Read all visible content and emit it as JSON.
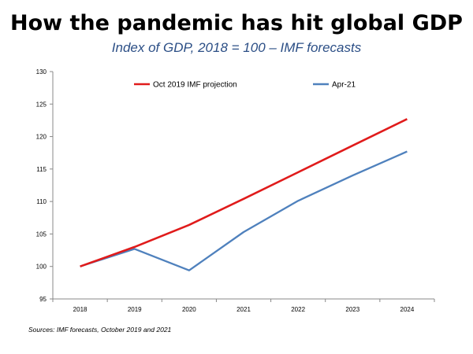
{
  "chart_data": {
    "type": "line",
    "title": "How the pandemic has hit global GDP",
    "subtitle": "Index of GDP, 2018 = 100 – IMF forecasts",
    "categories": [
      "2018",
      "2019",
      "2020",
      "2021",
      "2022",
      "2023",
      "2024"
    ],
    "ylim": [
      95,
      130
    ],
    "yticks": [
      "95",
      "100",
      "105",
      "110",
      "115",
      "120",
      "125",
      "130"
    ],
    "grid": false,
    "legend_position": "top",
    "series": [
      {
        "name": "Oct 2019 IMF projection",
        "color": "#e01b1b",
        "values": [
          100,
          103.0,
          106.4,
          110.4,
          114.5,
          118.6,
          122.7
        ]
      },
      {
        "name": "Apr-21",
        "color": "#4f81bd",
        "values": [
          100,
          102.7,
          99.4,
          105.3,
          110.1,
          114.0,
          117.7
        ]
      }
    ],
    "source": "Sources: IMF forecasts, October 2019 and 2021"
  }
}
